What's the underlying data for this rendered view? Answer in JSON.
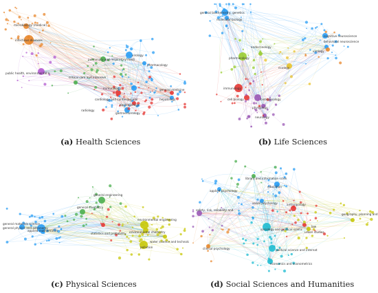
{
  "panels": [
    {
      "id": "a",
      "letter": "(a)",
      "title": "Health Sciences",
      "labels": [
        {
          "text": "microbiology (medical)",
          "color": "#e8872c"
        },
        {
          "text": "infectious diseases",
          "color": "#e8872c"
        },
        {
          "text": "public health, environmental a",
          "color": "#b35bd0"
        },
        {
          "text": "pulmonary and respiratory medi",
          "color": "#4caf50"
        },
        {
          "text": "virology",
          "color": "#2a9df4"
        },
        {
          "text": "immunology",
          "color": "#2a9df4"
        },
        {
          "text": "cardiology and cardiovascular",
          "color": "#e53935"
        },
        {
          "text": "critical care and intensive",
          "color": "#4caf50"
        },
        {
          "text": "pharmacology",
          "color": "#2a9df4"
        },
        {
          "text": "epidemiology",
          "color": "#e53935"
        },
        {
          "text": "general medicine",
          "color": "#e53935"
        },
        {
          "text": "hepatology",
          "color": "#2a9df4"
        },
        {
          "text": "gastroenterology",
          "color": "#2a9df4"
        },
        {
          "text": "radiology",
          "color": "#4caf50"
        }
      ]
    },
    {
      "id": "b",
      "letter": "(b)",
      "title": "Life Sciences",
      "labels": [
        {
          "text": "general biochemistry, genetics",
          "color": "#2a9df4"
        },
        {
          "text": "molecular biology",
          "color": "#2a9df4"
        },
        {
          "text": "pharmacology",
          "color": "#9acd32"
        },
        {
          "text": "endocrinology",
          "color": "#9acd32"
        },
        {
          "text": "ecology",
          "color": "#e8c22c"
        },
        {
          "text": "cognitive neuroscience",
          "color": "#2a9df4"
        },
        {
          "text": "behavioral neuroscience",
          "color": "#2a9df4"
        },
        {
          "text": "immunology",
          "color": "#e53935"
        },
        {
          "text": "cell biology",
          "color": "#e53935"
        },
        {
          "text": "biotechnology",
          "color": "#9b59b6"
        },
        {
          "text": "physiology",
          "color": "#9b59b6"
        },
        {
          "text": "neurology",
          "color": "#9b59b6"
        },
        {
          "text": "virology",
          "color": "#e8872c"
        }
      ]
    },
    {
      "id": "c",
      "letter": "(c)",
      "title": "Physical Sciences",
      "labels": [
        {
          "text": "general physics and astronomy",
          "color": "#2a9df4"
        },
        {
          "text": "general materials science",
          "color": "#2a9df4"
        },
        {
          "text": "applied mathematics",
          "color": "#2a9df4"
        },
        {
          "text": "general chemistry",
          "color": "#4caf50"
        },
        {
          "text": "general engineering",
          "color": "#4caf50"
        },
        {
          "text": "environmental engineering",
          "color": "#c8c80a"
        },
        {
          "text": "environmental chemistry",
          "color": "#c8c80a"
        },
        {
          "text": "water science and technology",
          "color": "#c8c80a"
        },
        {
          "text": "pollution",
          "color": "#c8c80a"
        },
        {
          "text": "statistics and probability",
          "color": "#e53935"
        }
      ]
    },
    {
      "id": "d",
      "letter": "(d)",
      "title": "Social Sciences and Humanities",
      "labels": [
        {
          "text": "safety, risk, reliability and",
          "color": "#9b59b6"
        },
        {
          "text": "sociology and political scienc",
          "color": "#1fbcd2"
        },
        {
          "text": "geography, planning and develo",
          "color": "#c8c80a"
        },
        {
          "text": "education",
          "color": "#2a9df4"
        },
        {
          "text": "economics and econometrics",
          "color": "#1fbcd2"
        },
        {
          "text": "political science and internat",
          "color": "#1fbcd2"
        },
        {
          "text": "clinical psychology",
          "color": "#e8872c"
        },
        {
          "text": "applied psychology",
          "color": "#2a9df4"
        },
        {
          "text": "social psychology",
          "color": "#2a9df4"
        },
        {
          "text": "library and information scien",
          "color": "#4caf50"
        },
        {
          "text": "urban studies",
          "color": "#c8c80a"
        },
        {
          "text": "anthropology",
          "color": "#e53935"
        },
        {
          "text": "law",
          "color": "#e53935"
        }
      ]
    }
  ]
}
